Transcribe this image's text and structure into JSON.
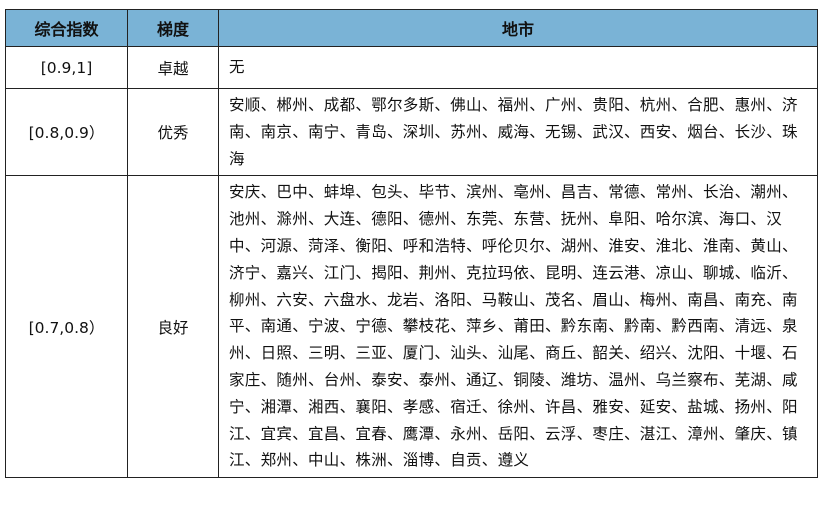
{
  "headers": [
    "综合指数",
    "梯度",
    "地市"
  ],
  "rows": [
    {
      "index": "[0.9,1]",
      "grade": "卓越",
      "cities": "无"
    },
    {
      "index": "[0.8,0.9）",
      "grade": "优秀",
      "cities": "安顺、郴州、成都、鄂尔多斯、佛山、福州、广州、贵阳、杭州、合肥、惠州、济南、南京、南宁、青岛、深圳、苏州、威海、无锡、武汉、西安、烟台、长沙、珠海"
    },
    {
      "index": "[0.7,0.8）",
      "grade": "良好",
      "cities": "安庆、巴中、蚌埠、包头、毕节、滨州、亳州、昌吉、常德、常州、长治、潮州、池州、滁州、大连、德阳、德州、东莞、东营、抚州、阜阳、哈尔滨、海口、汉中、河源、菏泽、衡阳、呼和浩特、呼伦贝尔、湖州、淮安、淮北、淮南、黄山、济宁、嘉兴、江门、揭阳、荆州、克拉玛依、昆明、连云港、凉山、聊城、临沂、柳州、六安、六盘水、龙岩、洛阳、马鞍山、茂名、眉山、梅州、南昌、南充、南平、南通、宁波、宁德、攀枝花、萍乡、莆田、黔东南、黔南、黔西南、清远、泉州、日照、三明、三亚、厦门、汕头、汕尾、商丘、韶关、绍兴、沈阳、十堰、石家庄、随州、台州、泰安、泰州、通辽、铜陵、潍坊、温州、乌兰察布、芜湖、咸宁、湘潭、湘西、襄阳、孝感、宿迁、徐州、许昌、雅安、延安、盐城、扬州、阳江、宜宾、宜昌、宜春、鹰潭、永州、岳阳、云浮、枣庄、湛江、漳州、肇庆、镇江、郑州、中山、株洲、淄博、自贡、遵义"
    }
  ],
  "colors": {
    "header_bg": "#7ab3d6"
  }
}
